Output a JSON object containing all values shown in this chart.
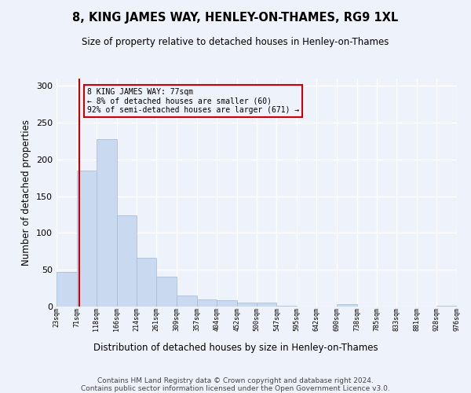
{
  "title": "8, KING JAMES WAY, HENLEY-ON-THAMES, RG9 1XL",
  "subtitle": "Size of property relative to detached houses in Henley-on-Thames",
  "xlabel": "Distribution of detached houses by size in Henley-on-Thames",
  "ylabel": "Number of detached properties",
  "bar_edges": [
    23,
    71,
    118,
    166,
    214,
    261,
    309,
    357,
    404,
    452,
    500,
    547,
    595,
    642,
    690,
    738,
    785,
    833,
    881,
    928,
    976
  ],
  "bar_heights": [
    47,
    185,
    228,
    124,
    66,
    41,
    15,
    10,
    9,
    5,
    5,
    1,
    0,
    0,
    3,
    0,
    0,
    0,
    0,
    1
  ],
  "bar_color": "#c9d9f0",
  "bar_edgecolor": "#a0b8d8",
  "ylim": [
    0,
    310
  ],
  "yticks": [
    0,
    50,
    100,
    150,
    200,
    250,
    300
  ],
  "property_line_x": 77,
  "property_line_color": "#cc0000",
  "annotation_line1": "8 KING JAMES WAY: 77sqm",
  "annotation_line2": "← 8% of detached houses are smaller (60)",
  "annotation_line3": "92% of semi-detached houses are larger (671) →",
  "annotation_box_color": "#cc0000",
  "footer_line1": "Contains HM Land Registry data © Crown copyright and database right 2024.",
  "footer_line2": "Contains public sector information licensed under the Open Government Licence v3.0.",
  "background_color": "#eef2fa",
  "grid_color": "#ffffff",
  "tick_labels": [
    "23sqm",
    "71sqm",
    "118sqm",
    "166sqm",
    "214sqm",
    "261sqm",
    "309sqm",
    "357sqm",
    "404sqm",
    "452sqm",
    "500sqm",
    "547sqm",
    "595sqm",
    "642sqm",
    "690sqm",
    "738sqm",
    "785sqm",
    "833sqm",
    "881sqm",
    "928sqm",
    "976sqm"
  ]
}
